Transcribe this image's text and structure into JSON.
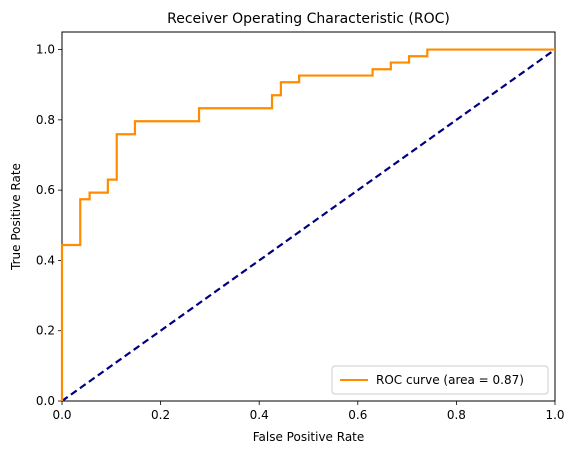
{
  "chart_data": {
    "type": "line",
    "title": "Receiver Operating Characteristic (ROC)",
    "xlabel": "False Positive Rate",
    "ylabel": "True Positive Rate",
    "xlim": [
      0.0,
      1.0
    ],
    "ylim": [
      0.0,
      1.05
    ],
    "xticks": [
      "0.0",
      "0.2",
      "0.4",
      "0.6",
      "0.8",
      "1.0"
    ],
    "yticks": [
      "0.0",
      "0.2",
      "0.4",
      "0.6",
      "0.8",
      "1.0"
    ],
    "grid": false,
    "legend_position": "lower-right",
    "series": [
      {
        "name": "ROC curve (area = 0.87)",
        "color": "#ff8c00",
        "style": "solid",
        "x": [
          0.0,
          0.0,
          0.037,
          0.037,
          0.056,
          0.056,
          0.093,
          0.093,
          0.111,
          0.111,
          0.148,
          0.148,
          0.278,
          0.278,
          0.426,
          0.426,
          0.444,
          0.444,
          0.481,
          0.481,
          0.63,
          0.63,
          0.667,
          0.667,
          0.704,
          0.704,
          0.741,
          0.741,
          1.0
        ],
        "y": [
          0.0,
          0.444,
          0.444,
          0.574,
          0.574,
          0.593,
          0.593,
          0.63,
          0.63,
          0.759,
          0.759,
          0.796,
          0.796,
          0.833,
          0.833,
          0.87,
          0.87,
          0.907,
          0.907,
          0.926,
          0.926,
          0.944,
          0.944,
          0.963,
          0.963,
          0.981,
          0.981,
          1.0,
          1.0
        ]
      },
      {
        "name": "",
        "color": "#000080",
        "style": "dashed",
        "x": [
          0.0,
          1.0
        ],
        "y": [
          0.0,
          1.0
        ]
      }
    ]
  }
}
